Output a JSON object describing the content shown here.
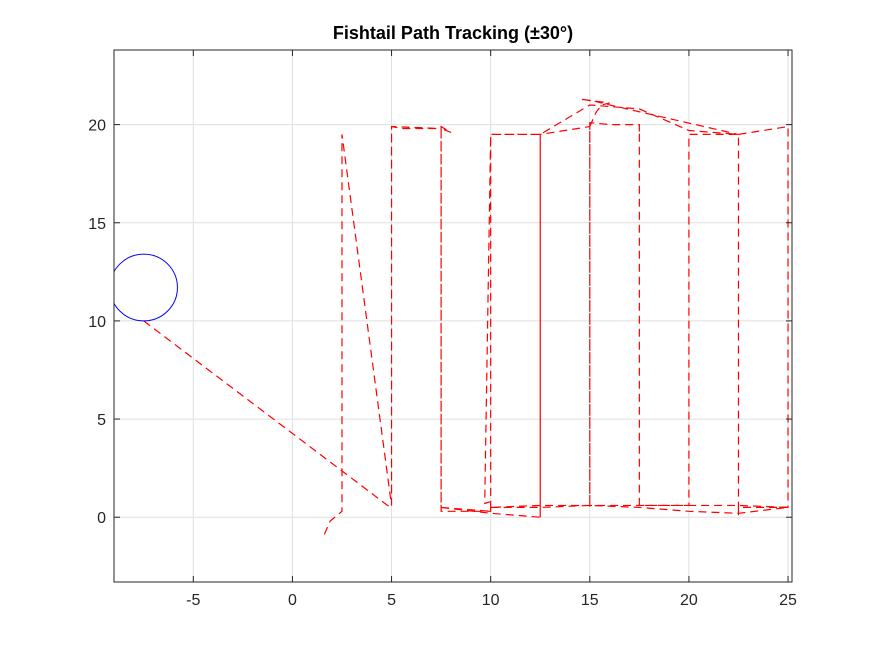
{
  "chart_data": {
    "type": "line",
    "title": "Fishtail Path Tracking (±30°)",
    "xlabel": "",
    "ylabel": "",
    "xlim": [
      -9,
      25.2
    ],
    "ylim": [
      -3.3,
      23.8
    ],
    "xticks": [
      -5,
      0,
      5,
      10,
      15,
      20,
      25
    ],
    "yticks": [
      0,
      5,
      10,
      15,
      20
    ],
    "xtick_labels": [
      "-5",
      "0",
      "5",
      "10",
      "15",
      "20",
      "25"
    ],
    "ytick_labels": [
      "0",
      "5",
      "10",
      "15",
      "20"
    ],
    "grid": true,
    "legend": "none",
    "series": [
      {
        "style": "dashed",
        "color": "#ff0000",
        "x": [
          -7.5,
          4.8,
          5,
          5,
          5.5,
          7.5,
          7.5,
          8,
          7.5,
          7.5,
          10,
          10,
          10,
          12.5,
          12.5,
          12.5,
          15,
          15,
          15,
          16,
          17.5,
          17.5,
          17.5,
          17.5,
          20,
          20,
          20,
          22.5,
          22.5,
          22.5,
          25,
          25,
          25,
          22.5,
          20,
          17.5,
          15,
          12.5,
          10,
          9.7,
          10,
          10,
          7.5,
          7.5,
          5,
          5,
          2.5,
          2.5,
          2.5,
          1.9,
          1.6
        ],
        "y": [
          10,
          0.6,
          0.5,
          19.9,
          19.8,
          19.8,
          19.9,
          19.6,
          19.8,
          0.5,
          0.3,
          0.6,
          19.5,
          19.5,
          0,
          19.5,
          19.9,
          0.5,
          20.1,
          20,
          20,
          19.6,
          20,
          0.6,
          0.6,
          19.5,
          19.5,
          19.5,
          0.1,
          0.5,
          0.5,
          19.9,
          19.9,
          19.5,
          19.7,
          20.8,
          21,
          19.5,
          19.5,
          0.7,
          0.8,
          0.3,
          0.3,
          19.8,
          19.9,
          0.6,
          19.5,
          19.5,
          0.3,
          -0.2,
          -0.9
        ]
      },
      {
        "style": "dashed",
        "color": "#ff0000",
        "x": [
          15,
          15.3,
          15.6,
          16,
          14.5,
          15.2,
          16,
          22.5
        ],
        "y": [
          19.9,
          20.6,
          21,
          21.1,
          21.3,
          21.2,
          21,
          19.5
        ]
      },
      {
        "style": "dashed",
        "color": "#ff0000",
        "x": [
          10,
          12.5,
          15,
          17.5,
          20,
          22.5,
          25,
          22.5,
          20,
          17.5,
          15,
          12.5,
          10
        ],
        "y": [
          0.5,
          0.5,
          0.6,
          0.5,
          0.3,
          0.2,
          0.5,
          0.6,
          0.6,
          0.6,
          0.6,
          0.6,
          0.5
        ]
      },
      {
        "style": "dashed",
        "color": "#ff0000",
        "x": [
          7.5,
          10,
          12.5
        ],
        "y": [
          0.5,
          0.2,
          0
        ]
      }
    ],
    "shapes": [
      {
        "type": "circle",
        "center": [
          -7.5,
          11.7
        ],
        "radius": 1.7,
        "color": "#0000ff"
      }
    ]
  }
}
